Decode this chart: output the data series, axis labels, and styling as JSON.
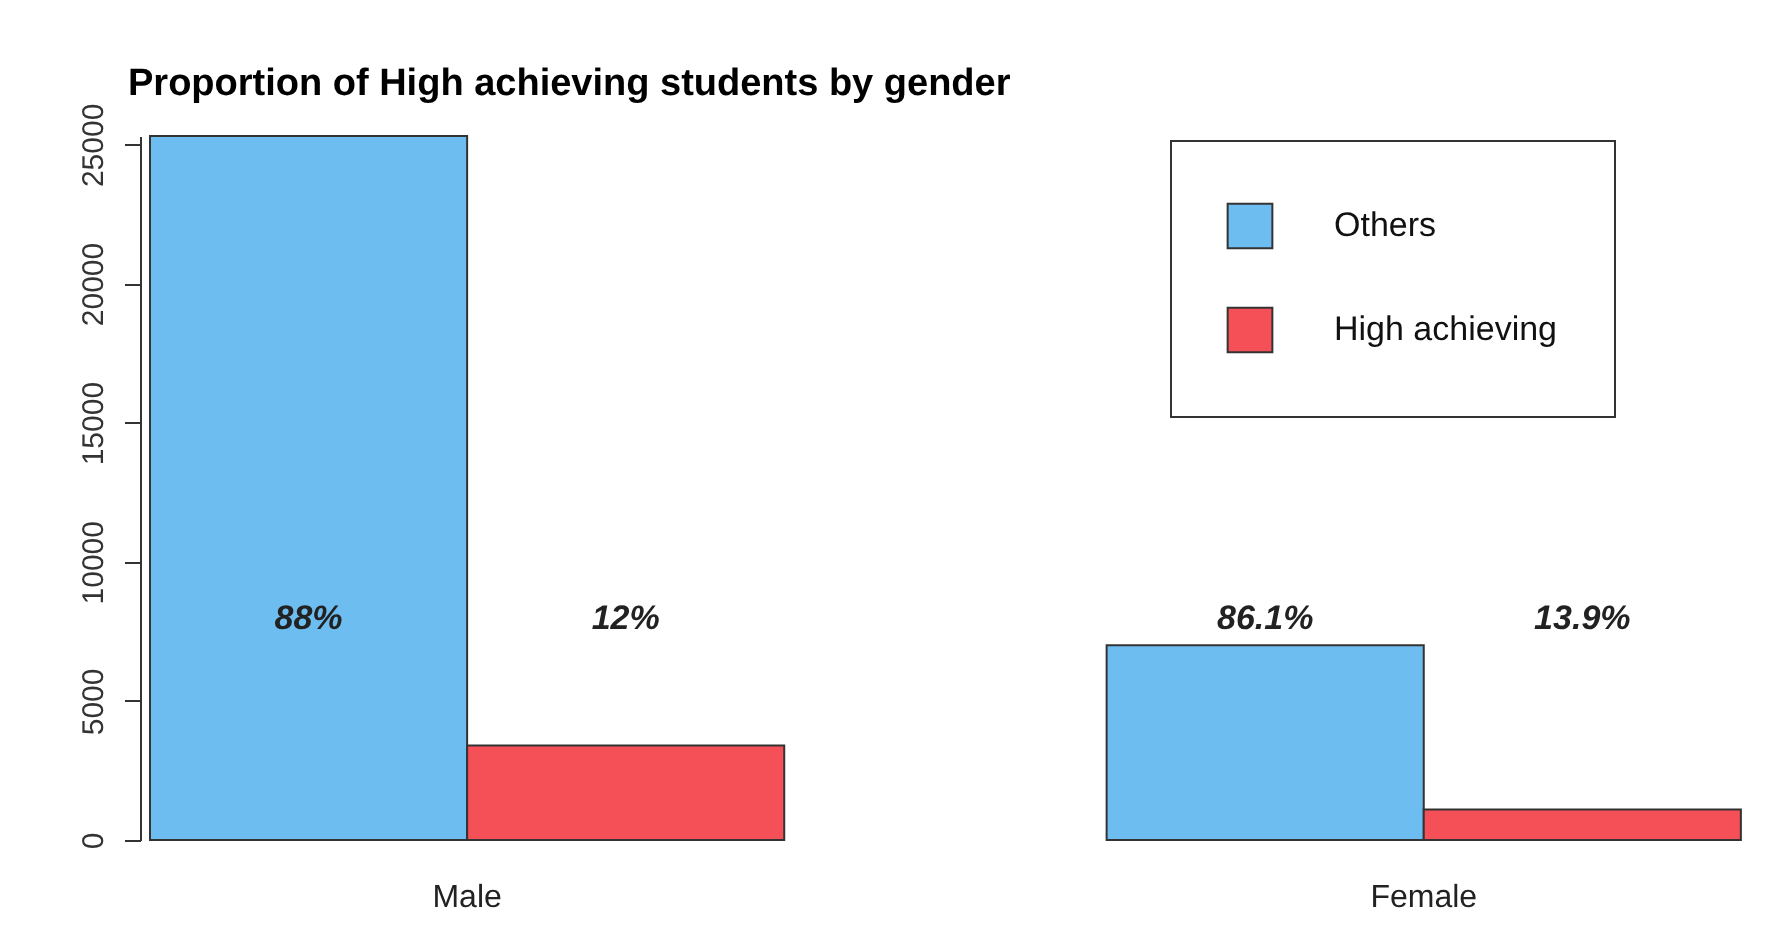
{
  "chart_data": {
    "type": "bar",
    "title": "Proportion of High achieving students by gender",
    "categories": [
      "Male",
      "Female"
    ],
    "series": [
      {
        "name": "Others",
        "color": "#6dbdf0",
        "values": [
          25300,
          7000
        ]
      },
      {
        "name": "High achieving",
        "color": "#f55057",
        "values": [
          3400,
          1100
        ]
      }
    ],
    "annotations": [
      "88%",
      "12%",
      "86.1%",
      "13.9%"
    ],
    "ylim": [
      0,
      25300
    ],
    "yticks": [
      0,
      5000,
      10000,
      15000,
      20000,
      25000
    ],
    "grid": false,
    "legend": "top right"
  }
}
